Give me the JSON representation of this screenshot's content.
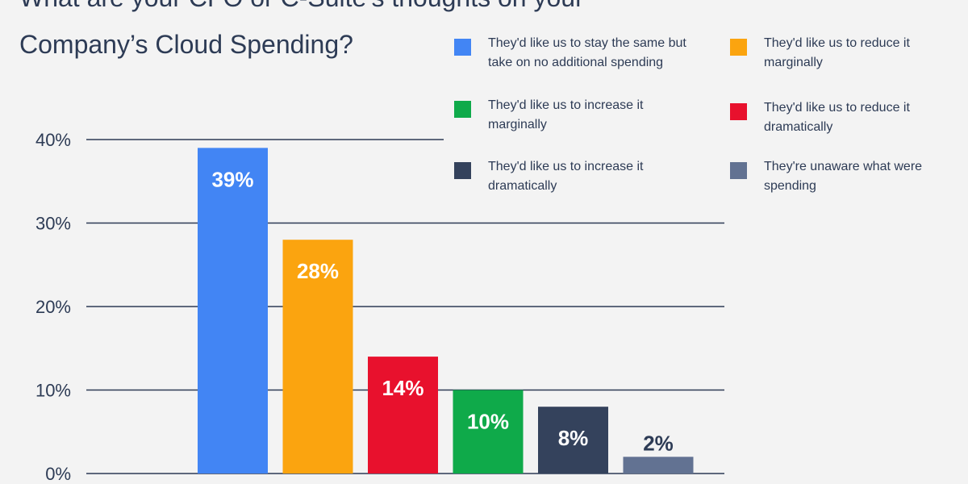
{
  "chart_data": {
    "type": "bar",
    "title": "What are your CFO or C-Suite's thoughts on your Company’s Cloud Spending?",
    "xlabel": "",
    "ylabel": "",
    "ylim": [
      0,
      40
    ],
    "yticks": [
      0,
      10,
      20,
      30,
      40
    ],
    "ytick_labels": [
      "0%",
      "10%",
      "20%",
      "30%",
      "40%"
    ],
    "grid": true,
    "legend": "top-right",
    "categories": [
      "They'd like us to stay the same but take on no additional spending",
      "They'd like us to reduce it marginally",
      "They'd like us to reduce it dramatically",
      "They'd like us to increase it marginally",
      "They'd like us to increase it dramatically",
      "They're unaware what were spending"
    ],
    "values": [
      39,
      28,
      14,
      10,
      8,
      2
    ],
    "value_labels": [
      "39%",
      "28%",
      "14%",
      "10%",
      "8%",
      "2%"
    ],
    "colors": [
      "#4285f4",
      "#fba40f",
      "#e8112d",
      "#0faa4a",
      "#34425c",
      "#627292"
    ],
    "label_colors": [
      "#ffffff",
      "#ffffff",
      "#ffffff",
      "#ffffff",
      "#ffffff",
      "#2d3b55"
    ]
  },
  "legend": [
    {
      "label": "They'd like us to stay the same but take on no additional spending",
      "color": "#4285f4"
    },
    {
      "label": "They'd like us to reduce it marginally",
      "color": "#fba40f"
    },
    {
      "label": "They'd like us to increase it marginally",
      "color": "#0faa4a"
    },
    {
      "label": "They'd like us to reduce it dramatically",
      "color": "#e8112d"
    },
    {
      "label": "They'd like us to increase it dramatically",
      "color": "#34425c"
    },
    {
      "label": "They're unaware what were spending",
      "color": "#627292"
    }
  ]
}
